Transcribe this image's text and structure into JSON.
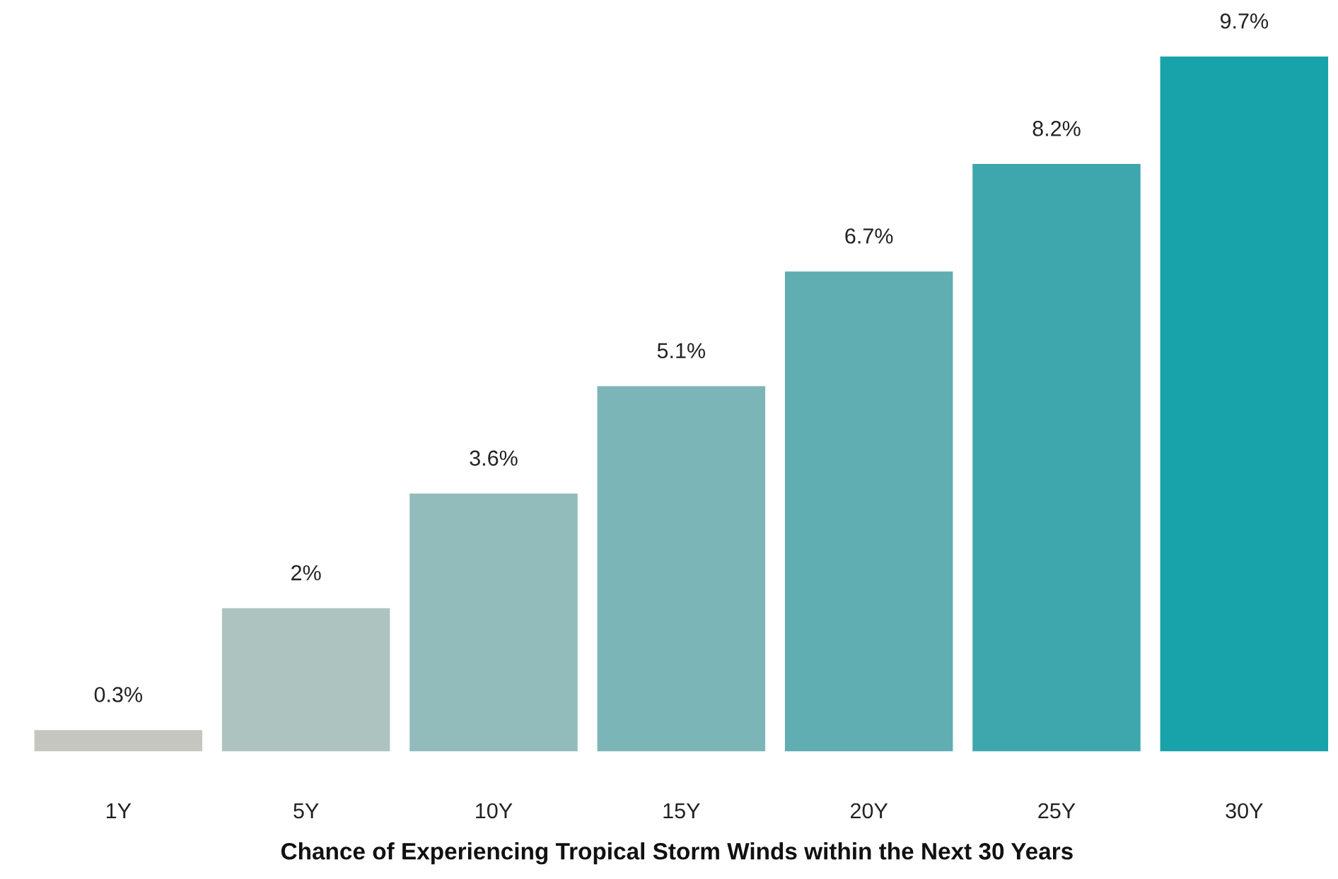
{
  "chart_data": {
    "type": "bar",
    "xlabel": "Chance of Experiencing Tropical Storm Winds within the Next 30 Years",
    "categories": [
      "1Y",
      "5Y",
      "10Y",
      "15Y",
      "20Y",
      "25Y",
      "30Y"
    ],
    "values": [
      0.3,
      2,
      3.6,
      5.1,
      6.7,
      8.2,
      9.7
    ],
    "value_labels": [
      "0.3%",
      "2%",
      "3.6%",
      "5.1%",
      "6.7%",
      "8.2%",
      "9.7%"
    ],
    "colors": [
      "#c6c6c1",
      "#adc3c0",
      "#92bbbb",
      "#7cb5b7",
      "#60adb2",
      "#3ea6ad",
      "#18a2aa"
    ],
    "grid": false,
    "legend": false
  }
}
